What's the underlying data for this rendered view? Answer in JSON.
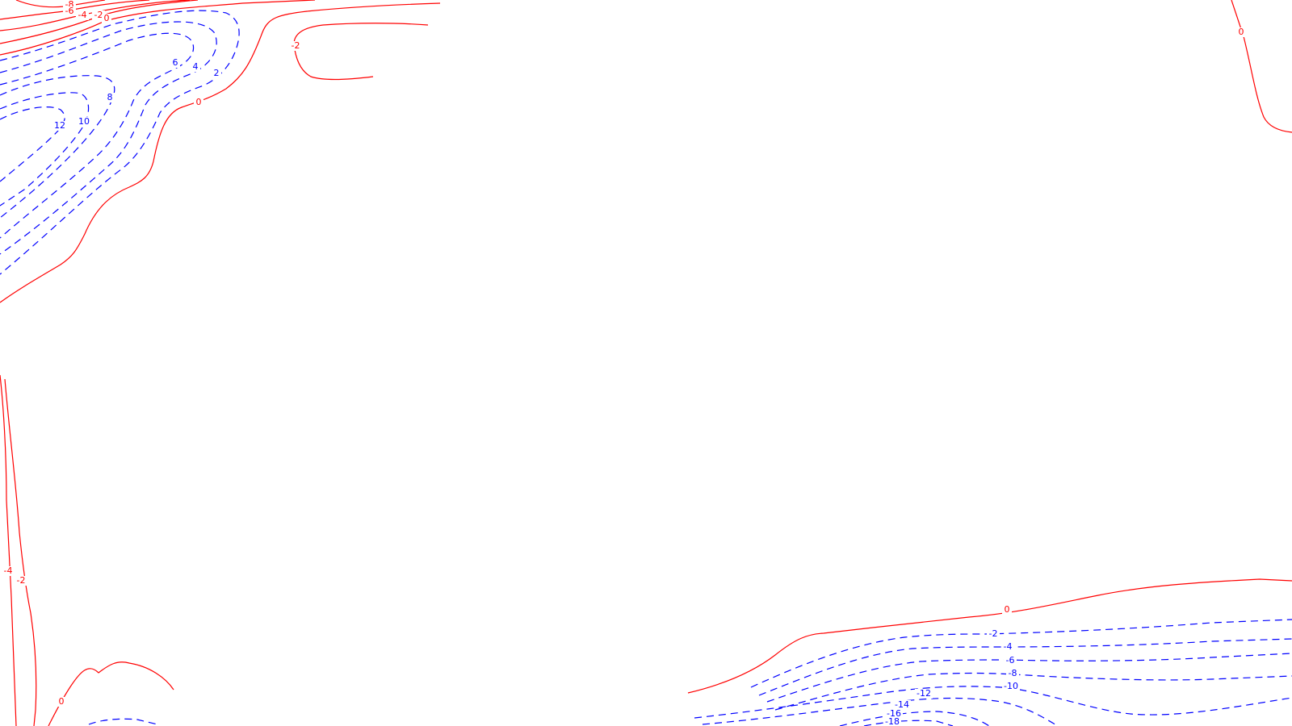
{
  "chart_data": {
    "type": "contour",
    "title": "",
    "xlabel": "",
    "ylabel": "",
    "grid": false,
    "legend": "none",
    "colors": {
      "red_contour": "#ff0000",
      "blue_dashed_contour": "#0000ff",
      "background": "#ffffff"
    },
    "contour_level_labels": {
      "top_left": [
        "-8",
        "-6",
        "-4",
        "-2",
        "0",
        "-2",
        "0",
        "2",
        "4",
        "6",
        "8",
        "10",
        "12"
      ],
      "top_right": [
        "0"
      ],
      "bottom_left": [
        "-4",
        "-2",
        "0"
      ],
      "bottom_right": [
        "0",
        "-2",
        "-4",
        "-6",
        "-8",
        "-10",
        "-12",
        "-14",
        "-16",
        "-18"
      ]
    }
  }
}
